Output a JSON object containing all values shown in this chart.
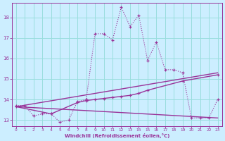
{
  "xlabel": "Windchill (Refroidissement éolien,°C)",
  "background_color": "#cceeff",
  "grid_color": "#99dddd",
  "line_color": "#993399",
  "x_ticks": [
    0,
    1,
    2,
    3,
    4,
    5,
    6,
    7,
    8,
    9,
    10,
    11,
    12,
    13,
    14,
    15,
    16,
    17,
    18,
    19,
    20,
    21,
    22,
    23
  ],
  "y_ticks": [
    13,
    14,
    15,
    16,
    17,
    18
  ],
  "ylim": [
    12.7,
    18.7
  ],
  "xlim": [
    -0.5,
    23.5
  ],
  "line1_x": [
    0,
    1,
    2,
    3,
    4,
    5,
    6,
    7,
    8,
    9,
    10,
    11,
    12,
    13,
    14,
    15,
    16,
    17,
    18,
    19,
    20,
    21,
    22,
    23
  ],
  "line1_y": [
    13.7,
    13.7,
    13.2,
    13.3,
    13.3,
    12.9,
    13.0,
    13.9,
    14.0,
    17.2,
    17.2,
    16.9,
    18.5,
    17.55,
    18.1,
    15.9,
    16.8,
    15.45,
    15.45,
    15.3,
    13.1,
    13.1,
    13.1,
    14.0
  ],
  "line2_x": [
    0,
    23
  ],
  "line2_y": [
    13.65,
    15.3
  ],
  "line3_x": [
    0,
    23
  ],
  "line3_y": [
    13.65,
    13.1
  ],
  "line4_x": [
    0,
    4,
    7,
    8,
    9,
    10,
    11,
    12,
    13,
    14,
    15,
    19,
    23
  ],
  "line4_y": [
    13.65,
    13.3,
    13.85,
    13.95,
    14.0,
    14.05,
    14.1,
    14.15,
    14.2,
    14.3,
    14.45,
    14.9,
    15.2
  ]
}
